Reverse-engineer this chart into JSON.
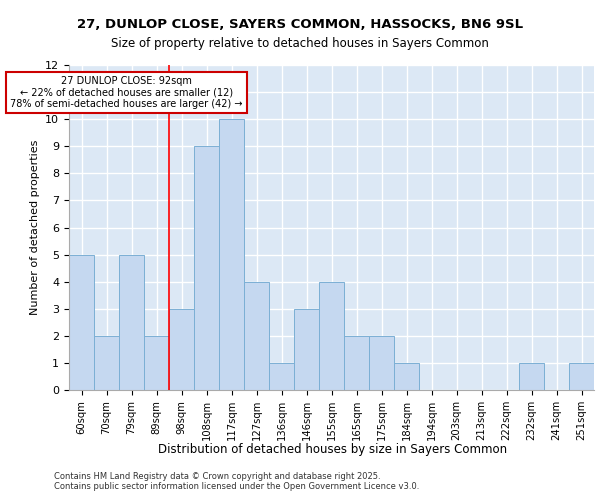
{
  "title1": "27, DUNLOP CLOSE, SAYERS COMMON, HASSOCKS, BN6 9SL",
  "title2": "Size of property relative to detached houses in Sayers Common",
  "xlabel": "Distribution of detached houses by size in Sayers Common",
  "ylabel": "Number of detached properties",
  "categories": [
    "60sqm",
    "70sqm",
    "79sqm",
    "89sqm",
    "98sqm",
    "108sqm",
    "117sqm",
    "127sqm",
    "136sqm",
    "146sqm",
    "155sqm",
    "165sqm",
    "175sqm",
    "184sqm",
    "194sqm",
    "203sqm",
    "213sqm",
    "222sqm",
    "232sqm",
    "241sqm",
    "251sqm"
  ],
  "values": [
    5,
    2,
    5,
    2,
    3,
    9,
    10,
    4,
    1,
    3,
    4,
    2,
    2,
    1,
    0,
    0,
    0,
    0,
    1,
    0,
    1
  ],
  "bar_color": "#c5d8f0",
  "bar_edge_color": "#7bafd4",
  "background_color": "#dce8f5",
  "grid_color": "#ffffff",
  "red_line_x": 3.5,
  "annotation_text": "27 DUNLOP CLOSE: 92sqm\n← 22% of detached houses are smaller (12)\n78% of semi-detached houses are larger (42) →",
  "annotation_box_color": "#ffffff",
  "annotation_box_edge": "#cc0000",
  "ylim": [
    0,
    12
  ],
  "yticks": [
    0,
    1,
    2,
    3,
    4,
    5,
    6,
    7,
    8,
    9,
    10,
    11,
    12
  ],
  "footer1": "Contains HM Land Registry data © Crown copyright and database right 2025.",
  "footer2": "Contains public sector information licensed under the Open Government Licence v3.0."
}
